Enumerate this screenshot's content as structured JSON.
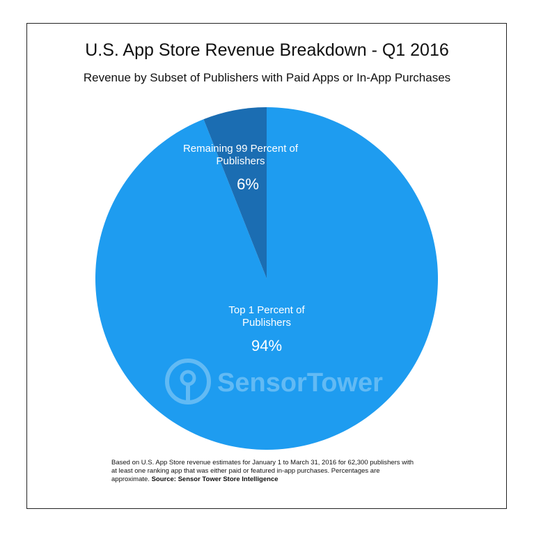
{
  "chart_data": {
    "type": "pie",
    "title": "U.S. App Store Revenue Breakdown - Q1 2016",
    "subtitle": "Revenue by Subset of Publishers with Paid Apps or In-App Purchases",
    "categories": [
      "Top 1 Percent of Publishers",
      "Remaining 99 Percent of Publishers"
    ],
    "values": [
      94,
      6
    ],
    "value_labels": [
      "94%",
      "6%"
    ],
    "colors": [
      "#1e9cf0",
      "#1b6db2"
    ],
    "watermark": "SensorTower",
    "note": "Based on U.S. App Store revenue estimates for January 1 to March 31, 2016 for 62,300 publishers with at least one ranking app that was either paid or featured in-app purchases. Percentages are approximate.",
    "source": "Source: Sensor Tower Store Intelligence"
  }
}
